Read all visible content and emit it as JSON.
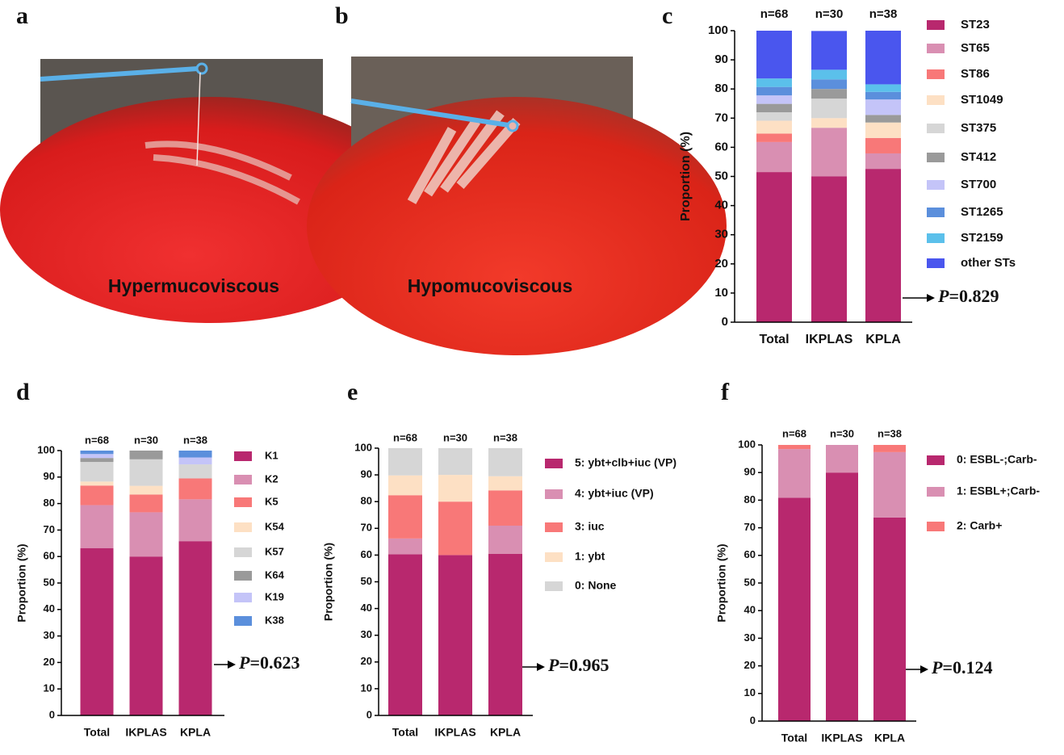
{
  "photos": [
    {
      "panel_label": "a",
      "caption": "Hypermucoviscous"
    },
    {
      "panel_label": "b",
      "caption": "Hypomucoviscous"
    }
  ],
  "chart_data": [
    {
      "type": "stacked_bar",
      "panel_label": "c",
      "y_label": "Proportion (%)",
      "categories": [
        "Total",
        "IKPLAS",
        "KPLA"
      ],
      "bar_annotations": [
        "n=68",
        "n=30",
        "n=38"
      ],
      "ylim": [
        0,
        100
      ],
      "yticks": [
        0,
        10,
        20,
        30,
        40,
        50,
        60,
        70,
        80,
        90,
        100
      ],
      "annotation_symbol": "P",
      "annotation": "=0.829",
      "series": [
        {
          "name": "ST23",
          "color": "#b8286e",
          "values": [
            51.5,
            50,
            52.6
          ]
        },
        {
          "name": "ST65",
          "color": "#d98fb2",
          "values": [
            10.3,
            16.7,
            5.3
          ]
        },
        {
          "name": "ST86",
          "color": "#f87878",
          "values": [
            2.9,
            0,
            5.3
          ]
        },
        {
          "name": "ST1049",
          "color": "#fde0c4",
          "values": [
            4.4,
            3.3,
            5.3
          ]
        },
        {
          "name": "ST375",
          "color": "#d6d6d6",
          "values": [
            2.9,
            6.7,
            0
          ]
        },
        {
          "name": "ST412",
          "color": "#9a9a9a",
          "values": [
            2.9,
            3.3,
            2.6
          ]
        },
        {
          "name": "ST700",
          "color": "#c4c4f8",
          "values": [
            2.9,
            0,
            5.3
          ]
        },
        {
          "name": "ST1265",
          "color": "#5b8fdc",
          "values": [
            2.9,
            3.3,
            2.6
          ]
        },
        {
          "name": "ST2159",
          "color": "#5bc0eb",
          "values": [
            2.9,
            3.3,
            2.6
          ]
        },
        {
          "name": "other STs",
          "color": "#4a56ee",
          "values": [
            16.4,
            13.3,
            18.4
          ]
        }
      ]
    },
    {
      "type": "stacked_bar",
      "panel_label": "d",
      "y_label": "Proportion (%)",
      "categories": [
        "Total",
        "IKPLAS",
        "KPLA"
      ],
      "bar_annotations": [
        "n=68",
        "n=30",
        "n=38"
      ],
      "ylim": [
        0,
        100
      ],
      "yticks": [
        0,
        10,
        20,
        30,
        40,
        50,
        60,
        70,
        80,
        90,
        100
      ],
      "annotation_symbol": "P",
      "annotation": "=0.623",
      "series": [
        {
          "name": "K1",
          "color": "#b8286e",
          "values": [
            63.2,
            60,
            65.8
          ]
        },
        {
          "name": "K2",
          "color": "#d98fb2",
          "values": [
            16.2,
            16.7,
            15.8
          ]
        },
        {
          "name": "K5",
          "color": "#f87878",
          "values": [
            7.4,
            6.7,
            7.9
          ]
        },
        {
          "name": "K54",
          "color": "#fde0c4",
          "values": [
            1.5,
            3.3,
            0
          ]
        },
        {
          "name": "K57",
          "color": "#d6d6d6",
          "values": [
            7.4,
            10,
            5.3
          ]
        },
        {
          "name": "K64",
          "color": "#9a9a9a",
          "values": [
            1.5,
            3.3,
            0
          ]
        },
        {
          "name": "K19",
          "color": "#c4c4f8",
          "values": [
            1.5,
            0,
            2.6
          ]
        },
        {
          "name": "K38",
          "color": "#5b8fdc",
          "values": [
            1.3,
            0,
            2.6
          ]
        }
      ]
    },
    {
      "type": "stacked_bar",
      "panel_label": "e",
      "y_label": "Proportion (%)",
      "categories": [
        "Total",
        "IKPLAS",
        "KPLA"
      ],
      "bar_annotations": [
        "n=68",
        "n=30",
        "n=38"
      ],
      "ylim": [
        0,
        100
      ],
      "yticks": [
        0,
        10,
        20,
        30,
        40,
        50,
        60,
        70,
        80,
        90,
        100
      ],
      "annotation_symbol": "P",
      "annotation": "=0.965",
      "series": [
        {
          "name": "5: ybt+clb+iuc (VP)",
          "color": "#b8286e",
          "values": [
            60.3,
            60,
            60.5
          ]
        },
        {
          "name": "4: ybt+iuc (VP)",
          "color": "#d98fb2",
          "values": [
            5.9,
            0,
            10.5
          ]
        },
        {
          "name": "3: iuc",
          "color": "#f87878",
          "values": [
            16.2,
            20,
            13.2
          ]
        },
        {
          "name": "1: ybt",
          "color": "#fde0c4",
          "values": [
            7.4,
            10,
            5.3
          ]
        },
        {
          "name": "0: None",
          "color": "#d6d6d6",
          "values": [
            10.2,
            10,
            10.5
          ]
        }
      ]
    },
    {
      "type": "stacked_bar",
      "panel_label": "f",
      "y_label": "Proportion (%)",
      "categories": [
        "Total",
        "IKPLAS",
        "KPLA"
      ],
      "bar_annotations": [
        "n=68",
        "n=30",
        "n=38"
      ],
      "ylim": [
        0,
        100
      ],
      "yticks": [
        0,
        10,
        20,
        30,
        40,
        50,
        60,
        70,
        80,
        90,
        100
      ],
      "annotation_symbol": "P",
      "annotation": "=0.124",
      "series": [
        {
          "name": "0: ESBL-;Carb-",
          "color": "#b8286e",
          "values": [
            80.9,
            90,
            73.7
          ]
        },
        {
          "name": "1: ESBL+;Carb-",
          "color": "#d98fb2",
          "values": [
            17.6,
            10,
            23.7
          ]
        },
        {
          "name": "2: Carb+",
          "color": "#f87878",
          "values": [
            1.5,
            0,
            2.6
          ]
        }
      ]
    }
  ]
}
